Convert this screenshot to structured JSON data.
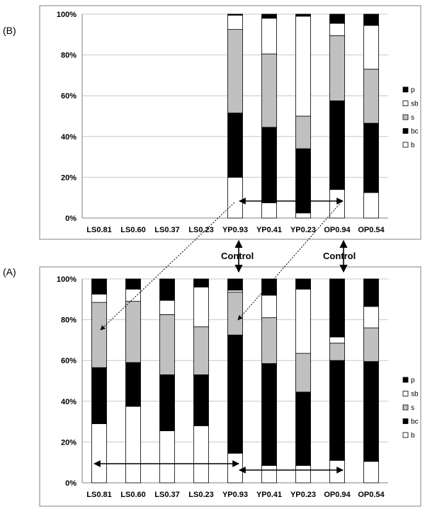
{
  "figure": {
    "annotation": "Control",
    "colors": {
      "p": "#000000",
      "sb": "#ffffff",
      "s": "#c0c0c0",
      "bc": "#000000",
      "b": "#ffffff",
      "edge": "#000000",
      "grid": "#c8c8c8"
    }
  },
  "chart_data": [
    {
      "type": "bar",
      "stacked": true,
      "percent": true,
      "panel_label": "(B)",
      "categories": [
        "LS0.81",
        "LS0.60",
        "LS0.37",
        "LS0.23",
        "YP0.93",
        "YP0.41",
        "YP0.23",
        "OP0.94",
        "OP0.54"
      ],
      "ylim": [
        0,
        100
      ],
      "yticks": [
        "0%",
        "20%",
        "40%",
        "60%",
        "80%",
        "100%"
      ],
      "grid": true,
      "legend_position": "right",
      "series": [
        {
          "name": "b",
          "values": [
            0,
            0,
            0,
            0,
            20,
            7.5,
            2.5,
            14,
            12.5
          ]
        },
        {
          "name": "bc",
          "values": [
            0,
            0,
            0,
            0,
            31.5,
            37,
            31.5,
            43.5,
            34
          ]
        },
        {
          "name": "s",
          "values": [
            0,
            0,
            0,
            0,
            41,
            36,
            16,
            32,
            26.5
          ]
        },
        {
          "name": "sb",
          "values": [
            0,
            0,
            0,
            0,
            7,
            17.5,
            49,
            6,
            21.5
          ]
        },
        {
          "name": "p",
          "values": [
            0,
            0,
            0,
            0,
            0.5,
            2,
            1,
            4.5,
            5.5
          ]
        }
      ]
    },
    {
      "type": "bar",
      "stacked": true,
      "percent": true,
      "panel_label": "(A)",
      "categories": [
        "LS0.81",
        "LS0.60",
        "LS0.37",
        "LS0.23",
        "YP0.93",
        "YP0.41",
        "YP0.23",
        "OP0.94",
        "OP0.54"
      ],
      "ylim": [
        0,
        100
      ],
      "yticks": [
        "0%",
        "20%",
        "40%",
        "60%",
        "80%",
        "100%"
      ],
      "grid": true,
      "legend_position": "right",
      "series": [
        {
          "name": "b",
          "values": [
            29,
            37.5,
            25.5,
            28,
            14.5,
            8.5,
            8.5,
            11,
            10.5
          ]
        },
        {
          "name": "bc",
          "values": [
            27.5,
            21.5,
            27.5,
            25,
            58,
            50,
            36,
            49,
            49
          ]
        },
        {
          "name": "s",
          "values": [
            32,
            30,
            29.5,
            23.5,
            21,
            22.5,
            19,
            8.5,
            16.5
          ]
        },
        {
          "name": "sb",
          "values": [
            4,
            6,
            7,
            19.5,
            1,
            11,
            31.5,
            3,
            10.5
          ]
        },
        {
          "name": "p",
          "values": [
            7.5,
            5,
            10.5,
            4,
            5.5,
            8,
            5,
            28.5,
            13.5
          ]
        }
      ]
    }
  ]
}
